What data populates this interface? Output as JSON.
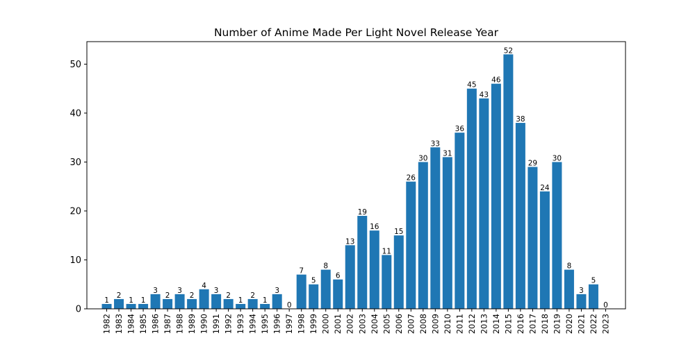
{
  "chart_data": {
    "type": "bar",
    "title": "Number of Anime Made Per Light Novel Release Year",
    "xlabel": "",
    "ylabel": "",
    "categories": [
      "1982",
      "1983",
      "1984",
      "1985",
      "1986",
      "1987",
      "1988",
      "1989",
      "1990",
      "1991",
      "1992",
      "1993",
      "1994",
      "1995",
      "1996",
      "1997",
      "1998",
      "1999",
      "2000",
      "2001",
      "2002",
      "2003",
      "2004",
      "2005",
      "2006",
      "2007",
      "2008",
      "2009",
      "2010",
      "2011",
      "2012",
      "2013",
      "2014",
      "2015",
      "2016",
      "2017",
      "2018",
      "2019",
      "2020",
      "2021",
      "2022",
      "2023"
    ],
    "values": [
      1,
      2,
      1,
      1,
      3,
      2,
      3,
      2,
      4,
      3,
      2,
      1,
      2,
      1,
      3,
      0,
      7,
      5,
      8,
      6,
      13,
      19,
      16,
      11,
      15,
      26,
      30,
      33,
      31,
      36,
      45,
      43,
      46,
      52,
      38,
      29,
      24,
      30,
      8,
      3,
      5,
      0
    ],
    "ylim": [
      0,
      54.6
    ],
    "yticks": [
      0,
      10,
      20,
      30,
      40,
      50
    ],
    "bar_color": "#1f77b4",
    "grid": false,
    "legend": "none"
  }
}
